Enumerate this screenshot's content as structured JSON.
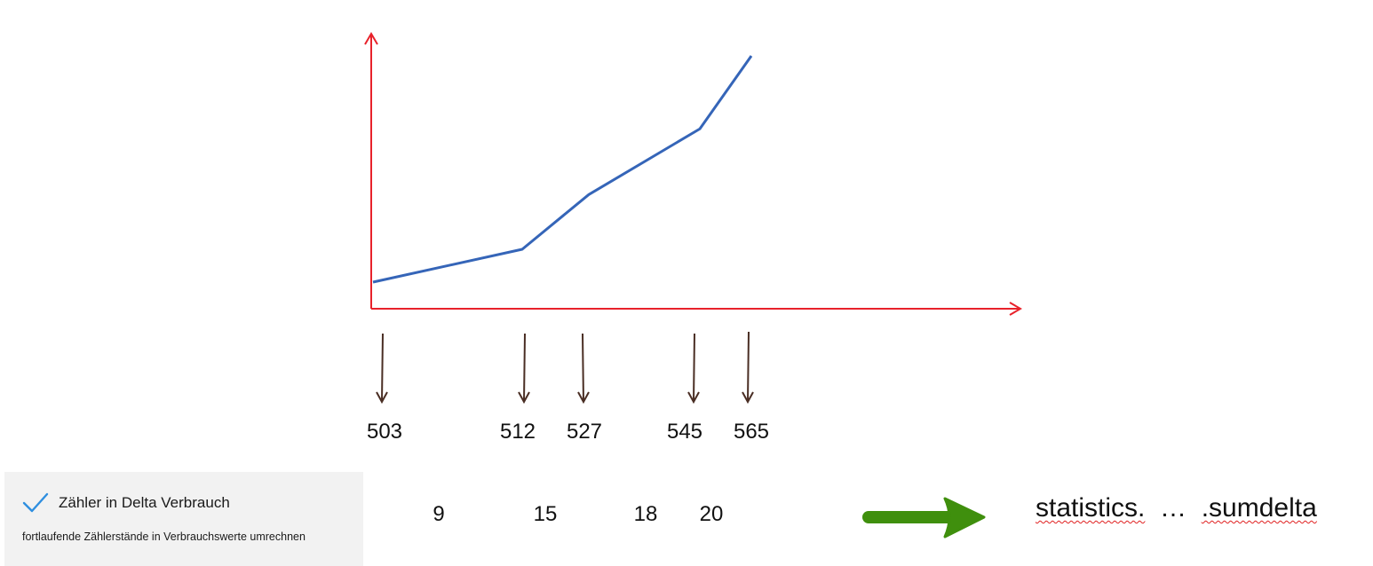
{
  "chart_data": {
    "type": "line",
    "title": "",
    "xlabel": "",
    "ylabel": "",
    "series": [
      {
        "name": "",
        "values": [
          503,
          512,
          527,
          545,
          565
        ]
      }
    ]
  },
  "readings": [
    "503",
    "512",
    "527",
    "545",
    "565"
  ],
  "deltas": [
    "9",
    "15",
    "18",
    "20"
  ],
  "option": {
    "title": "Zähler in Delta Verbrauch",
    "description": "fortlaufende Zählerstände in Verbrauchswerte umrechnen",
    "checked": true
  },
  "result": {
    "part1": "statistics.",
    "part2": "  …  ",
    "part3": ".sumdelta"
  },
  "colors": {
    "axis": "#e8222b",
    "line": "#3565b8",
    "down_arrow": "#4a2e24",
    "result_arrow": "#3f8f0d",
    "check": "#2f8fe0",
    "card_bg": "#f2f2f2"
  },
  "icons": {
    "check": "checkmark-icon",
    "result_arrow": "right-arrow-icon"
  }
}
